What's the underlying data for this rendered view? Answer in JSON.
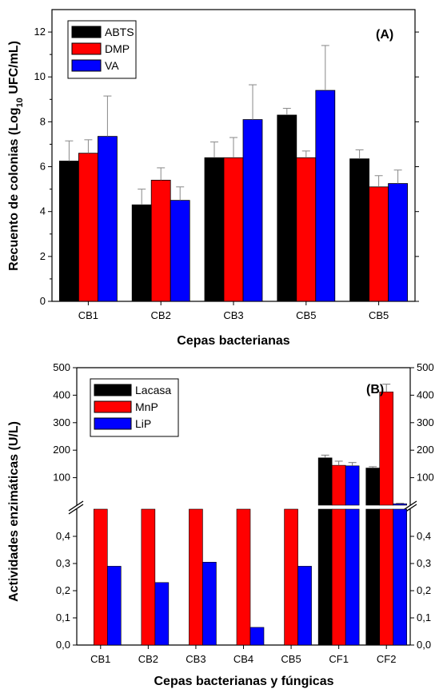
{
  "chart_data": [
    {
      "type": "bar",
      "panel_label": "(A)",
      "xlabel": "Cepas bacterianas",
      "ylabel_main": "Recuento de colonias (Log",
      "ylabel_sub": "10",
      "ylabel_tail": " UFC/mL)",
      "ylim": [
        0,
        13
      ],
      "yticks": [
        "0",
        "2",
        "4",
        "6",
        "8",
        "10",
        "12"
      ],
      "yticks_values": [
        0,
        2,
        4,
        6,
        8,
        10,
        12
      ],
      "categories": [
        "CB1",
        "CB2",
        "CB3",
        "CB5",
        "CB5"
      ],
      "legend_position": "top-left",
      "series": [
        {
          "name": "ABTS",
          "color": "#000000",
          "values": [
            6.25,
            4.3,
            6.4,
            8.3,
            6.35
          ],
          "errors": [
            0.9,
            0.7,
            0.7,
            0.3,
            0.4
          ]
        },
        {
          "name": "DMP",
          "color": "#ff0000",
          "values": [
            6.6,
            5.4,
            6.4,
            6.4,
            5.1
          ],
          "errors": [
            0.6,
            0.55,
            0.9,
            0.3,
            0.5
          ]
        },
        {
          "name": "VA",
          "color": "#0000ff",
          "values": [
            7.35,
            4.5,
            8.1,
            9.4,
            5.25
          ],
          "errors": [
            1.8,
            0.6,
            1.55,
            2.0,
            0.6
          ]
        }
      ]
    },
    {
      "type": "bar",
      "panel_label": "(B)",
      "xlabel": "Cepas bacterianas y fúngicas",
      "ylabel": "Actividades enzimáticas (U/L)",
      "broken_axis": true,
      "lower_ylim": [
        0,
        0.5
      ],
      "lower_yticks": [
        "0,0",
        "0,1",
        "0,2",
        "0,3",
        "0,4"
      ],
      "lower_yticks_values": [
        0,
        0.1,
        0.2,
        0.3,
        0.4
      ],
      "upper_ylim": [
        0,
        500
      ],
      "upper_yticks": [
        "100",
        "200",
        "300",
        "400",
        "500"
      ],
      "upper_yticks_values": [
        100,
        200,
        300,
        400,
        500
      ],
      "categories": [
        "CB1",
        "CB2",
        "CB3",
        "CB4",
        "CB5",
        "CF1",
        "CF2"
      ],
      "legend_position": "top-left",
      "series": [
        {
          "name": "Lacasa",
          "color": "#000000",
          "values": [
            0,
            0,
            0,
            0,
            0,
            172,
            135
          ],
          "errors": [
            0,
            0,
            0,
            0,
            0,
            10,
            5
          ]
        },
        {
          "name": "MnP",
          "color": "#ff0000",
          "values": [
            0.5,
            0.5,
            0.5,
            0.5,
            0.5,
            145,
            412
          ],
          "errors": [
            0,
            0,
            0,
            0,
            0,
            15,
            28
          ]
        },
        {
          "name": "LiP",
          "color": "#0000ff",
          "values": [
            0.29,
            0.23,
            0.305,
            0.065,
            0.29,
            143,
            5
          ],
          "errors": [
            0,
            0,
            0,
            0,
            0,
            12,
            2
          ]
        }
      ]
    }
  ]
}
